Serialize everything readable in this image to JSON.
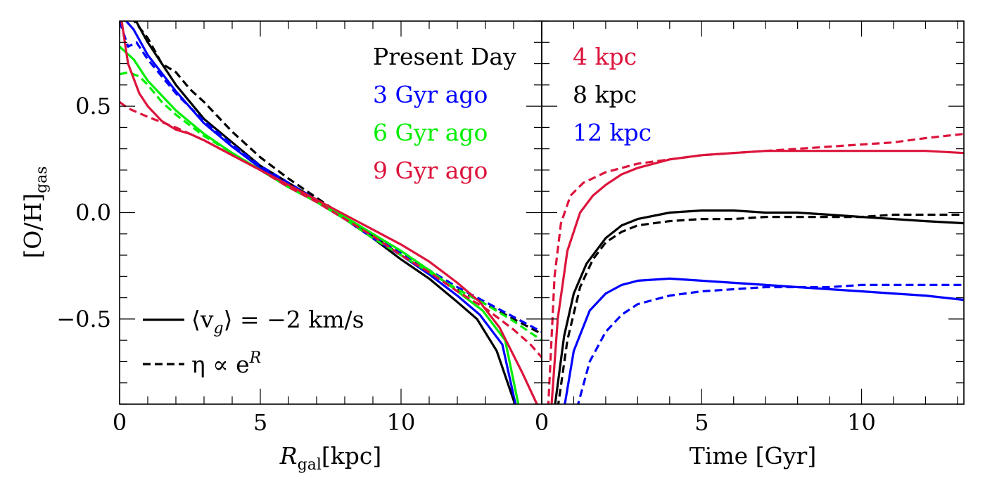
{
  "chart_data": [
    {
      "type": "line",
      "panel": "left",
      "xlabel": "R",
      "xlabel_sub": "gal",
      "xlabel_unit": "[kpc]",
      "ylabel": "[O/H]",
      "ylabel_sub": "gas",
      "xlim": [
        0,
        15
      ],
      "ylim": [
        -0.9,
        0.9
      ],
      "xticks": [
        0,
        5,
        10
      ],
      "xticklabels": [
        "0",
        "5",
        "10"
      ],
      "yticks": [
        -0.5,
        0.0,
        0.5
      ],
      "yticklabels": [
        "−0.5",
        "0.0",
        "0.5"
      ],
      "time_legend": [
        {
          "label": "Present Day",
          "color": "#000000"
        },
        {
          "label": "3 Gyr ago",
          "color": "#0000ff"
        },
        {
          "label": "6 Gyr ago",
          "color": "#00ee00"
        },
        {
          "label": "9 Gyr ago",
          "color": "#dc143c"
        }
      ],
      "style_legend": [
        {
          "label": "⟨v",
          "sub": "g",
          "rest": "⟩ = −2 km/s",
          "style": "solid"
        },
        {
          "label": "η ∝ e",
          "sup": "R",
          "rest": "",
          "style": "dashed"
        }
      ],
      "series": [
        {
          "time": "Present Day",
          "model": "solid",
          "color": "#000000",
          "x": [
            0.5,
            1,
            2,
            3,
            4,
            5,
            6,
            7,
            8,
            9,
            10,
            11,
            12,
            12.7,
            13.4,
            14.1
          ],
          "y": [
            0.92,
            0.8,
            0.6,
            0.44,
            0.33,
            0.22,
            0.14,
            0.06,
            -0.03,
            -0.12,
            -0.22,
            -0.31,
            -0.42,
            -0.5,
            -0.65,
            -0.92
          ]
        },
        {
          "time": "Present Day",
          "model": "dashed",
          "color": "#000000",
          "x": [
            0.4,
            1,
            1.5,
            2,
            2.5,
            3,
            4,
            5,
            6,
            7,
            8,
            9,
            10,
            11,
            12,
            13,
            14,
            15
          ],
          "y": [
            0.92,
            0.82,
            0.7,
            0.66,
            0.58,
            0.52,
            0.38,
            0.26,
            0.16,
            0.07,
            -0.02,
            -0.11,
            -0.2,
            -0.28,
            -0.36,
            -0.43,
            -0.5,
            -0.57
          ]
        },
        {
          "time": "3 Gyr ago",
          "model": "solid",
          "color": "#0000ff",
          "x": [
            0.1,
            0.5,
            1,
            2,
            3,
            4,
            5,
            6,
            7,
            8,
            9,
            10,
            11,
            12,
            12.8,
            13.6,
            14.1
          ],
          "y": [
            0.92,
            0.86,
            0.74,
            0.57,
            0.42,
            0.31,
            0.21,
            0.13,
            0.05,
            -0.03,
            -0.12,
            -0.2,
            -0.29,
            -0.39,
            -0.48,
            -0.62,
            -0.92
          ]
        },
        {
          "time": "3 Gyr ago",
          "model": "dashed",
          "color": "#0000ff",
          "x": [
            0,
            0.3,
            0.6,
            1,
            2,
            3,
            4,
            5,
            6,
            7,
            8,
            9,
            10,
            11,
            12,
            13,
            14,
            15
          ],
          "y": [
            0.9,
            0.78,
            0.8,
            0.72,
            0.56,
            0.43,
            0.32,
            0.22,
            0.14,
            0.06,
            -0.02,
            -0.11,
            -0.19,
            -0.27,
            -0.35,
            -0.42,
            -0.49,
            -0.56
          ]
        },
        {
          "time": "6 Gyr ago",
          "model": "solid",
          "color": "#00ee00",
          "x": [
            0,
            0.5,
            1,
            2,
            3,
            4,
            5,
            6,
            7,
            8,
            9,
            10,
            11,
            12,
            12.9,
            13.7,
            14.2
          ],
          "y": [
            0.78,
            0.72,
            0.62,
            0.48,
            0.37,
            0.28,
            0.2,
            0.12,
            0.05,
            -0.02,
            -0.1,
            -0.18,
            -0.27,
            -0.37,
            -0.46,
            -0.6,
            -0.92
          ]
        },
        {
          "time": "6 Gyr ago",
          "model": "dashed",
          "color": "#00ee00",
          "x": [
            0,
            0.3,
            0.7,
            1,
            1.5,
            2,
            3,
            4,
            5,
            6,
            7,
            8,
            9,
            10,
            11,
            12,
            13,
            14,
            15
          ],
          "y": [
            0.65,
            0.66,
            0.64,
            0.6,
            0.52,
            0.46,
            0.36,
            0.28,
            0.2,
            0.12,
            0.05,
            -0.03,
            -0.12,
            -0.2,
            -0.28,
            -0.36,
            -0.43,
            -0.51,
            -0.6
          ]
        },
        {
          "time": "9 Gyr ago",
          "model": "solid",
          "color": "#dc143c",
          "x": [
            0.05,
            0.3,
            0.7,
            1,
            1.5,
            2,
            2.5,
            3,
            4,
            5,
            6,
            7,
            8,
            9,
            10,
            11,
            12,
            12.8,
            13.5,
            14.3,
            14.9
          ],
          "y": [
            0.92,
            0.7,
            0.56,
            0.5,
            0.43,
            0.39,
            0.37,
            0.34,
            0.27,
            0.2,
            0.13,
            0.06,
            -0.01,
            -0.08,
            -0.15,
            -0.23,
            -0.33,
            -0.42,
            -0.54,
            -0.75,
            -0.92
          ]
        },
        {
          "time": "9 Gyr ago",
          "model": "dashed",
          "color": "#dc143c",
          "x": [
            0,
            0.3,
            1,
            2,
            3,
            4,
            5,
            6,
            7,
            8,
            9,
            10,
            11,
            12,
            13,
            14,
            14.6,
            15
          ],
          "y": [
            0.52,
            0.49,
            0.45,
            0.4,
            0.34,
            0.27,
            0.2,
            0.12,
            0.05,
            -0.03,
            -0.11,
            -0.2,
            -0.28,
            -0.37,
            -0.45,
            -0.55,
            -0.62,
            -0.68
          ]
        }
      ]
    },
    {
      "type": "line",
      "panel": "right",
      "xlabel": "Time [Gyr]",
      "xlim": [
        0,
        13.2
      ],
      "ylim": [
        -0.9,
        0.9
      ],
      "xticks": [
        0,
        5,
        10
      ],
      "xticklabels": [
        "0",
        "5",
        "10"
      ],
      "radius_legend": [
        {
          "label": "4 kpc",
          "color": "#dc143c"
        },
        {
          "label": "8 kpc",
          "color": "#000000"
        },
        {
          "label": "12 kpc",
          "color": "#0000ff"
        }
      ],
      "series": [
        {
          "radius": "4 kpc",
          "model": "solid",
          "color": "#dc143c",
          "x": [
            0.3,
            0.5,
            0.8,
            1.2,
            1.6,
            2,
            2.5,
            3,
            4,
            5,
            6,
            7,
            8,
            9,
            10,
            11,
            12,
            13.2
          ],
          "y": [
            -0.92,
            -0.5,
            -0.18,
            0.0,
            0.08,
            0.13,
            0.18,
            0.21,
            0.25,
            0.27,
            0.28,
            0.29,
            0.29,
            0.29,
            0.29,
            0.29,
            0.29,
            0.28
          ]
        },
        {
          "radius": "4 kpc",
          "model": "dashed",
          "color": "#dc143c",
          "x": [
            0.2,
            0.4,
            0.6,
            0.9,
            1.3,
            2,
            3,
            4,
            5,
            6,
            7,
            8,
            9,
            10,
            11,
            12,
            13.2
          ],
          "y": [
            -0.92,
            -0.3,
            -0.05,
            0.08,
            0.14,
            0.19,
            0.23,
            0.25,
            0.27,
            0.28,
            0.29,
            0.3,
            0.31,
            0.32,
            0.33,
            0.35,
            0.37
          ]
        },
        {
          "radius": "8 kpc",
          "model": "solid",
          "color": "#000000",
          "x": [
            0.4,
            0.7,
            1,
            1.4,
            2,
            2.5,
            3,
            4,
            5,
            6,
            7,
            8,
            9,
            10,
            11,
            12,
            13.2
          ],
          "y": [
            -0.92,
            -0.58,
            -0.38,
            -0.24,
            -0.12,
            -0.06,
            -0.03,
            0.0,
            0.01,
            0.01,
            0.0,
            0.0,
            -0.01,
            -0.02,
            -0.03,
            -0.04,
            -0.05
          ]
        },
        {
          "radius": "8 kpc",
          "model": "dashed",
          "color": "#000000",
          "x": [
            0.5,
            0.8,
            1.2,
            1.6,
            2,
            2.5,
            3,
            4,
            5,
            6,
            7,
            8,
            9,
            10,
            11,
            12,
            13.2
          ],
          "y": [
            -0.92,
            -0.6,
            -0.35,
            -0.22,
            -0.14,
            -0.09,
            -0.06,
            -0.04,
            -0.03,
            -0.03,
            -0.02,
            -0.02,
            -0.02,
            -0.02,
            -0.01,
            -0.01,
            -0.01
          ]
        },
        {
          "radius": "12 kpc",
          "model": "solid",
          "color": "#0000ff",
          "x": [
            0.7,
            1,
            1.5,
            2,
            2.5,
            3,
            4,
            5,
            6,
            7,
            8,
            9,
            10,
            11,
            12,
            13.2
          ],
          "y": [
            -0.92,
            -0.65,
            -0.46,
            -0.38,
            -0.34,
            -0.32,
            -0.31,
            -0.32,
            -0.33,
            -0.34,
            -0.35,
            -0.36,
            -0.37,
            -0.38,
            -0.39,
            -0.41
          ]
        },
        {
          "radius": "12 kpc",
          "model": "dashed",
          "color": "#0000ff",
          "x": [
            1.1,
            1.5,
            2,
            2.5,
            3,
            4,
            5,
            6,
            7,
            8,
            9,
            10,
            11,
            12,
            13.2
          ],
          "y": [
            -0.92,
            -0.7,
            -0.56,
            -0.48,
            -0.43,
            -0.39,
            -0.37,
            -0.36,
            -0.35,
            -0.35,
            -0.35,
            -0.34,
            -0.34,
            -0.34,
            -0.34
          ]
        }
      ]
    }
  ]
}
